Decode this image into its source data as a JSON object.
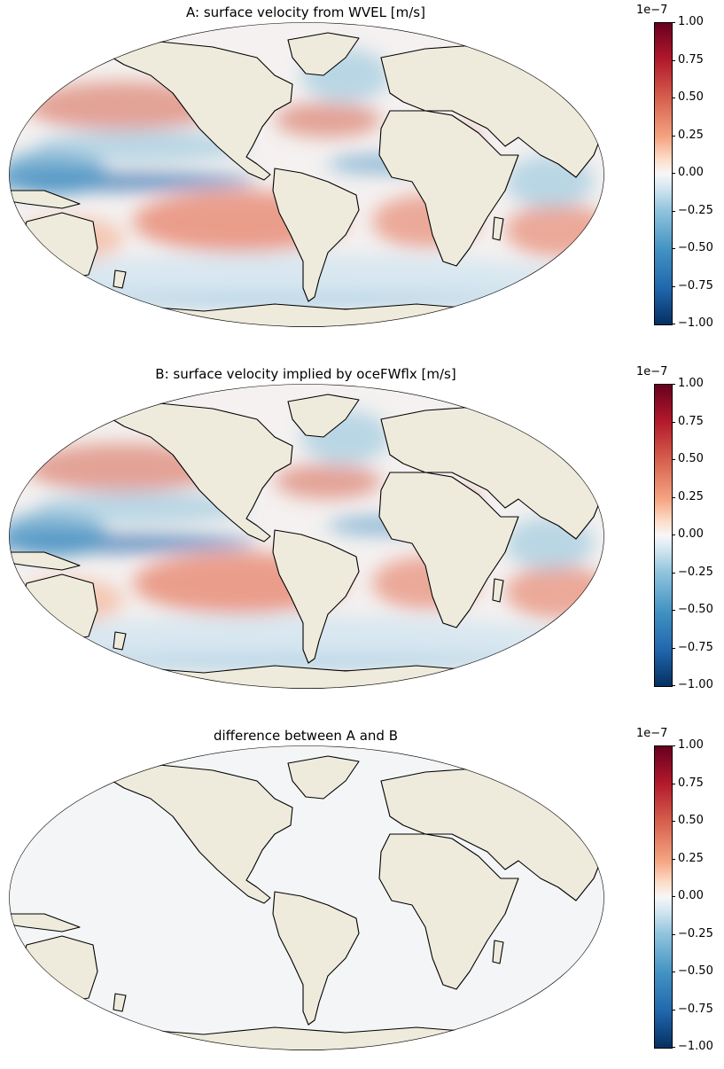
{
  "panels": [
    {
      "title": "A: surface velocity from WVEL [m/s]",
      "pattern": "signal",
      "colorbar": {
        "exponent": "1e−7",
        "ticks": [
          "1.00",
          "0.75",
          "0.50",
          "0.25",
          "0.00",
          "−0.25",
          "−0.50",
          "−0.75",
          "−1.00"
        ]
      }
    },
    {
      "title": "B: surface velocity implied by oceFWflx [m/s]",
      "pattern": "signal",
      "colorbar": {
        "exponent": "1e−7",
        "ticks": [
          "1.00",
          "0.75",
          "0.50",
          "0.25",
          "0.00",
          "−0.25",
          "−0.50",
          "−0.75",
          "−1.00"
        ]
      }
    },
    {
      "title": "difference between A and B",
      "pattern": "near-zero",
      "colorbar": {
        "exponent": "1e−7",
        "ticks": [
          "1.00",
          "0.75",
          "0.50",
          "0.25",
          "0.00",
          "−0.25",
          "−0.50",
          "−0.75",
          "−1.00"
        ]
      }
    }
  ],
  "map": {
    "projection": "Robinson",
    "colormap": "RdBu_r",
    "range": [
      -1e-07,
      1e-07
    ],
    "land_color": "#efebdc",
    "coastline_color": "#000000"
  }
}
